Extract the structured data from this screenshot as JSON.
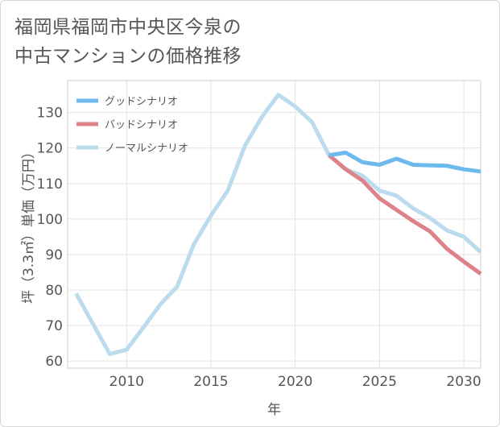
{
  "title_lines": [
    "福岡県福岡市中央区今泉の",
    "中古マンションの価格推移"
  ],
  "chart_data": {
    "type": "line",
    "xlabel": "年",
    "ylabel": "坪（3.3㎡）単価（万円）",
    "xlim": [
      2006.5,
      2031
    ],
    "ylim": [
      58,
      139
    ],
    "x_ticks": [
      2010,
      2015,
      2020,
      2025,
      2030
    ],
    "y_ticks": [
      60,
      70,
      80,
      90,
      100,
      110,
      120,
      130
    ],
    "legend_position": "top-left",
    "series": [
      {
        "name": "グッドシナリオ",
        "color": "#6cb9ee",
        "x": [
          2022,
          2023,
          2024,
          2025,
          2026,
          2027,
          2028,
          2029,
          2030,
          2031
        ],
        "values": [
          118,
          118.7,
          116,
          115.3,
          117,
          115.3,
          115.1,
          115,
          114,
          113.4
        ]
      },
      {
        "name": "バッドシナリオ",
        "color": "#de8289",
        "x": [
          2022,
          2023,
          2024,
          2025,
          2026,
          2027,
          2028,
          2029,
          2030,
          2031
        ],
        "values": [
          118,
          114,
          110.8,
          105.8,
          102.6,
          99.4,
          96.5,
          91.6,
          88,
          84.6
        ]
      },
      {
        "name": "ノーマルシナリオ",
        "color": "#bcdcee",
        "x": [
          2007,
          2008,
          2009,
          2010,
          2011,
          2012,
          2013,
          2014,
          2015,
          2016,
          2017,
          2018,
          2019,
          2020,
          2021,
          2022,
          2023,
          2024,
          2025,
          2026,
          2027,
          2028,
          2029,
          2030,
          2031
        ],
        "values": [
          79,
          70.5,
          62,
          63.2,
          69.5,
          76,
          81,
          93,
          101,
          108,
          120.5,
          128.6,
          135,
          131.7,
          127.3,
          118,
          114,
          112.2,
          108,
          106.6,
          103,
          100.3,
          96.8,
          95,
          90.7
        ]
      }
    ]
  }
}
